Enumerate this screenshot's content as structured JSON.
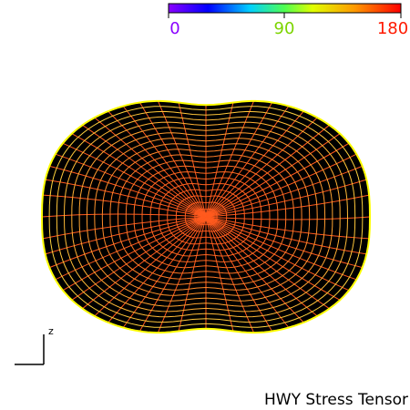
{
  "colorbar": {
    "ticks": [
      {
        "value": "0",
        "color": "#8a00ff"
      },
      {
        "value": "90",
        "color": "#7cd400"
      },
      {
        "value": "180",
        "color": "#ff1a00"
      }
    ]
  },
  "axis": {
    "label": "z"
  },
  "caption": "HWY Stress Tensor",
  "colors": {
    "background": "#ffffff",
    "shape_fill": "#000000",
    "outline": "#ffff00",
    "mesh_center": "#ff5a1e",
    "mesh_edge": "#ffe040"
  }
}
